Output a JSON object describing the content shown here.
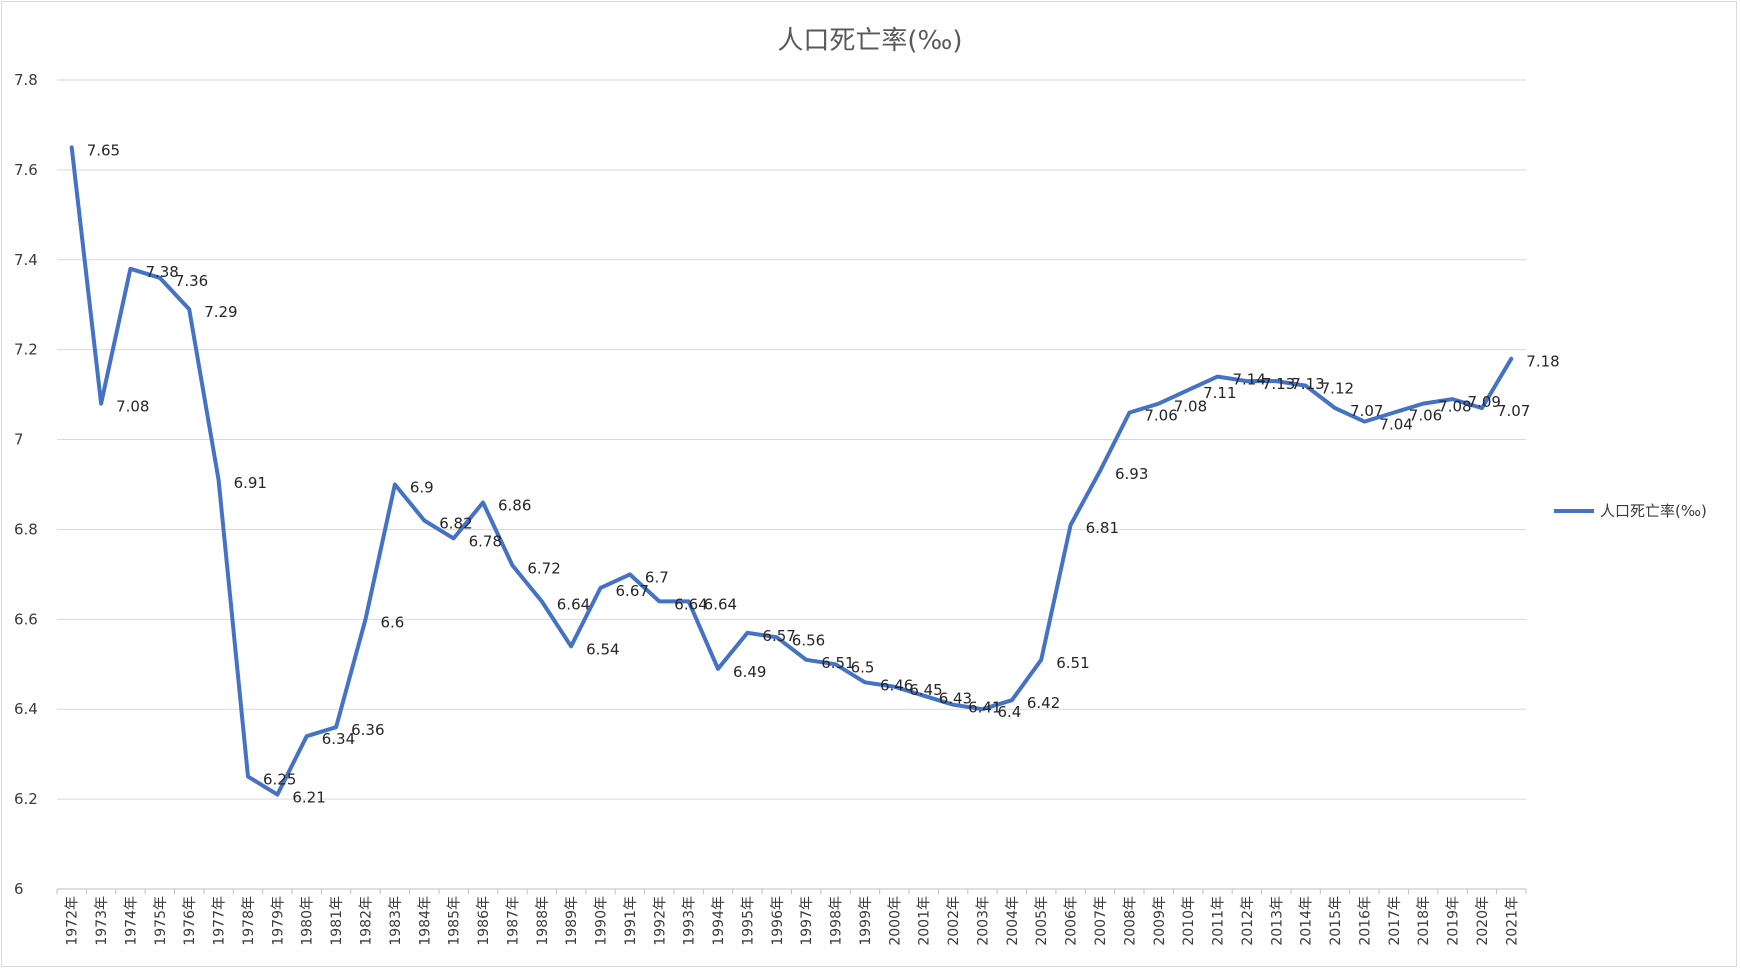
{
  "chart_data": {
    "type": "line",
    "title": "人口死亡率(‰)",
    "xlabel": "",
    "ylabel": "",
    "ylim": [
      6,
      7.8
    ],
    "yticks": [
      "6",
      "6.2",
      "6.4",
      "6.6",
      "6.8",
      "7",
      "7.2",
      "7.4",
      "7.6",
      "7.8"
    ],
    "grid": true,
    "legend_position": "right",
    "categories": [
      "1972年",
      "1973年",
      "1974年",
      "1975年",
      "1976年",
      "1977年",
      "1978年",
      "1979年",
      "1980年",
      "1981年",
      "1982年",
      "1983年",
      "1984年",
      "1985年",
      "1986年",
      "1987年",
      "1988年",
      "1989年",
      "1990年",
      "1991年",
      "1992年",
      "1993年",
      "1994年",
      "1995年",
      "1996年",
      "1997年",
      "1998年",
      "1999年",
      "2000年",
      "2001年",
      "2002年",
      "2003年",
      "2004年",
      "2005年",
      "2006年",
      "2007年",
      "2008年",
      "2009年",
      "2010年",
      "2011年",
      "2012年",
      "2013年",
      "2014年",
      "2015年",
      "2016年",
      "2017年",
      "2018年",
      "2019年",
      "2020年",
      "2021年"
    ],
    "series": [
      {
        "name": "人口死亡率(‰)",
        "color": "#4472c4",
        "values": [
          7.65,
          7.08,
          7.38,
          7.36,
          7.29,
          6.91,
          6.25,
          6.21,
          6.34,
          6.36,
          6.6,
          6.9,
          6.82,
          6.78,
          6.86,
          6.72,
          6.64,
          6.54,
          6.67,
          6.7,
          6.64,
          6.64,
          6.49,
          6.57,
          6.56,
          6.51,
          6.5,
          6.46,
          6.45,
          6.43,
          6.41,
          6.4,
          6.42,
          6.51,
          6.81,
          6.93,
          7.06,
          7.08,
          7.11,
          7.14,
          7.13,
          7.13,
          7.12,
          7.07,
          7.04,
          7.06,
          7.08,
          7.09,
          7.07,
          7.18
        ]
      }
    ]
  }
}
